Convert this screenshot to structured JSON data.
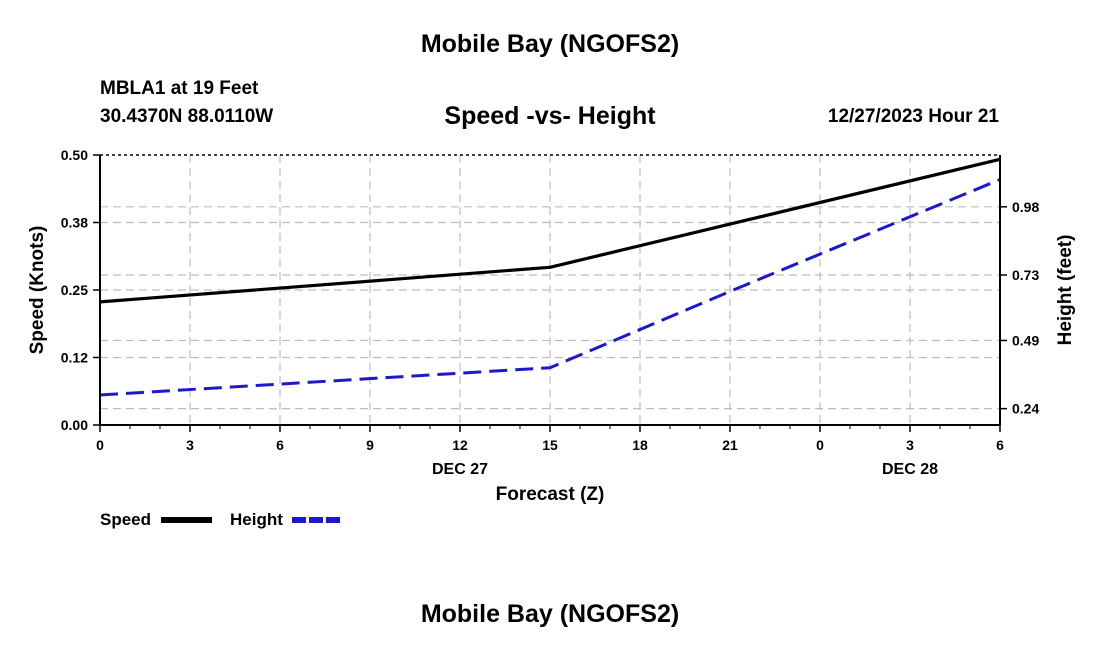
{
  "page": {
    "title": "Mobile Bay (NGOFS2)",
    "footer_title": "Mobile Bay (NGOFS2)",
    "station": "MBLA1 at 19 Feet",
    "coords": "30.4370N  88.0110W",
    "timestamp": "12/27/2023 Hour 21"
  },
  "chart_data": {
    "type": "line",
    "title": "Speed -vs- Height",
    "xlabel": "Forecast (Z)",
    "ylabel_left": "Speed (Knots)",
    "ylabel_right": "Height (feet)",
    "x_ticks": [
      "0",
      "3",
      "6",
      "9",
      "12",
      "15",
      "18",
      "21",
      "0",
      "3",
      "6"
    ],
    "date_labels": [
      {
        "text": "DEC 27",
        "at_tick": 4
      },
      {
        "text": "DEC 28",
        "at_tick": 9
      }
    ],
    "x_range": [
      0,
      30
    ],
    "y_left_ticks": [
      "0.00",
      "0.12",
      "0.25",
      "0.38",
      "0.50"
    ],
    "y_left_range": [
      0,
      0.5
    ],
    "y_right_ticks": [
      "0.24",
      "0.49",
      "0.73",
      "0.98"
    ],
    "y_right_range": [
      0.18,
      1.17
    ],
    "grid": true,
    "legend_position": "bottom-left",
    "series": [
      {
        "name": "Speed",
        "axis": "left",
        "color": "#000000",
        "style": "solid",
        "x": [
          0,
          15,
          21,
          30
        ],
        "values": [
          0.228,
          0.292,
          0.372,
          0.492
        ]
      },
      {
        "name": "Height",
        "axis": "right",
        "color": "#1a1acc",
        "style": "dashed",
        "x": [
          0,
          15,
          21,
          30
        ],
        "values": [
          0.29,
          0.39,
          0.67,
          1.08
        ]
      }
    ]
  }
}
